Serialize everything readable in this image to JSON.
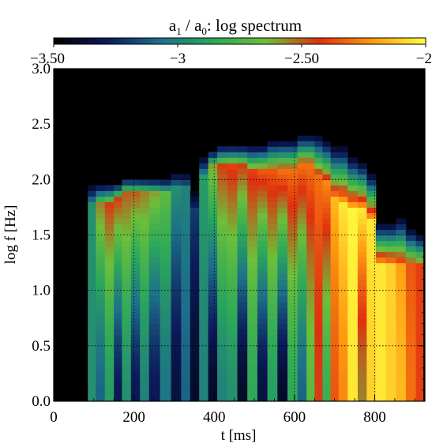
{
  "chart_data": {
    "type": "heatmap",
    "title": "a1 / a0: log spectrum",
    "title_parts": {
      "a": "a",
      "sub1": "1",
      "sep": " / a",
      "sub0": "0",
      "rest": ": log spectrum"
    },
    "xlabel": "t [ms]",
    "ylabel": "log f [Hz]",
    "xlim": [
      0,
      925
    ],
    "ylim": [
      0.0,
      3.0
    ],
    "x_ticks": [
      0,
      200,
      400,
      600,
      800
    ],
    "x_tick_labels": [
      "0",
      "200",
      "400",
      "600",
      "800"
    ],
    "y_ticks": [
      0.0,
      0.5,
      1.0,
      1.5,
      2.0,
      2.5,
      3.0
    ],
    "y_tick_labels": [
      "0.0",
      "0.5",
      "1.0",
      "1.5",
      "2.0",
      "2.5",
      "3.0"
    ],
    "colorbar": {
      "range": [
        -3.5,
        -2.0
      ],
      "ticks": [
        -3.5,
        -3.0,
        -2.5,
        -2.0
      ],
      "tick_labels": [
        "−3.50",
        "−3",
        "−2.50",
        "−2"
      ],
      "colormap": [
        "#000000",
        "#0b1a5a",
        "#1d6f8a",
        "#2ba85a",
        "#6cbf3a",
        "#e03010",
        "#ff9a10",
        "#ffff40"
      ]
    },
    "grid": true,
    "grid_style": "dotted",
    "grid_x": [
      200,
      400,
      600,
      800
    ],
    "grid_y": [
      0.5,
      1.0,
      1.5,
      2.0,
      2.5
    ],
    "background_value": -3.5,
    "columns": [
      {
        "t": 95,
        "low": -2.95,
        "peak": -2.95,
        "f": 1.75,
        "top": 1.95
      },
      {
        "t": 115,
        "low": -3.1,
        "peak": -2.55,
        "f": 1.75,
        "top": 1.95
      },
      {
        "t": 140,
        "low": -2.9,
        "peak": -2.45,
        "f": 1.75,
        "top": 1.95
      },
      {
        "t": 160,
        "low": -3.3,
        "peak": -2.45,
        "f": 1.8,
        "top": 1.95
      },
      {
        "t": 180,
        "low": -2.95,
        "peak": -2.5,
        "f": 1.85,
        "top": 2.0
      },
      {
        "t": 205,
        "low": -3.3,
        "peak": -2.5,
        "f": 1.85,
        "top": 2.0
      },
      {
        "t": 225,
        "low": -3.0,
        "peak": -2.55,
        "f": 1.85,
        "top": 2.0
      },
      {
        "t": 250,
        "low": -3.3,
        "peak": -2.6,
        "f": 1.85,
        "top": 2.0
      },
      {
        "t": 280,
        "low": -3.05,
        "peak": -2.7,
        "f": 1.85,
        "top": 2.0
      },
      {
        "t": 305,
        "low": -3.35,
        "peak": -2.95,
        "f": 1.9,
        "top": 2.05
      },
      {
        "t": 330,
        "low": -3.1,
        "peak": -3.0,
        "f": 1.9,
        "top": 2.05
      },
      {
        "t": 350,
        "low": -3.4,
        "peak": -3.2,
        "f": 1.7,
        "top": 1.9
      },
      {
        "t": 375,
        "low": -3.0,
        "peak": -2.9,
        "f": 2.0,
        "top": 2.2
      },
      {
        "t": 395,
        "low": -3.4,
        "peak": -2.6,
        "f": 2.1,
        "top": 2.25
      },
      {
        "t": 420,
        "low": -3.0,
        "peak": -2.45,
        "f": 2.1,
        "top": 2.3
      },
      {
        "t": 445,
        "low": -2.95,
        "peak": -2.4,
        "f": 2.1,
        "top": 2.3
      },
      {
        "t": 470,
        "low": -3.4,
        "peak": -2.45,
        "f": 2.1,
        "top": 2.3
      },
      {
        "t": 495,
        "low": -2.85,
        "peak": -2.4,
        "f": 2.05,
        "top": 2.3
      },
      {
        "t": 520,
        "low": -3.35,
        "peak": -2.35,
        "f": 2.05,
        "top": 2.3
      },
      {
        "t": 545,
        "low": -2.9,
        "peak": -2.35,
        "f": 2.05,
        "top": 2.35
      },
      {
        "t": 570,
        "low": -3.4,
        "peak": -2.3,
        "f": 2.05,
        "top": 2.35
      },
      {
        "t": 595,
        "low": -2.85,
        "peak": -2.3,
        "f": 2.05,
        "top": 2.35
      },
      {
        "t": 620,
        "low": -3.1,
        "peak": -2.3,
        "f": 2.1,
        "top": 2.4
      },
      {
        "t": 640,
        "low": -2.7,
        "peak": -2.3,
        "f": 2.1,
        "top": 2.4
      },
      {
        "t": 660,
        "low": -2.45,
        "peak": -2.3,
        "f": 2.0,
        "top": 2.4
      },
      {
        "t": 680,
        "low": -2.8,
        "peak": -2.25,
        "f": 1.95,
        "top": 2.35
      },
      {
        "t": 700,
        "low": -2.35,
        "peak": -2.15,
        "f": 1.8,
        "top": 2.3
      },
      {
        "t": 720,
        "low": -2.25,
        "peak": -2.05,
        "f": 1.75,
        "top": 2.3
      },
      {
        "t": 745,
        "low": -2.05,
        "peak": -2.02,
        "f": 1.7,
        "top": 2.2
      },
      {
        "t": 770,
        "low": -2.55,
        "peak": -2.05,
        "f": 1.7,
        "top": 2.15
      },
      {
        "t": 790,
        "low": -2.1,
        "peak": -2.05,
        "f": 1.6,
        "top": 2.05
      },
      {
        "t": 815,
        "low": -2.05,
        "peak": -2.05,
        "f": 1.2,
        "top": 1.6
      },
      {
        "t": 840,
        "low": -2.1,
        "peak": -2.1,
        "f": 1.2,
        "top": 1.6
      },
      {
        "t": 865,
        "low": -2.15,
        "peak": -2.2,
        "f": 1.2,
        "top": 1.65
      },
      {
        "t": 890,
        "low": -2.3,
        "peak": -2.35,
        "f": 1.2,
        "top": 1.55
      },
      {
        "t": 915,
        "low": -2.4,
        "peak": -2.4,
        "f": 1.2,
        "top": 1.5
      }
    ]
  }
}
